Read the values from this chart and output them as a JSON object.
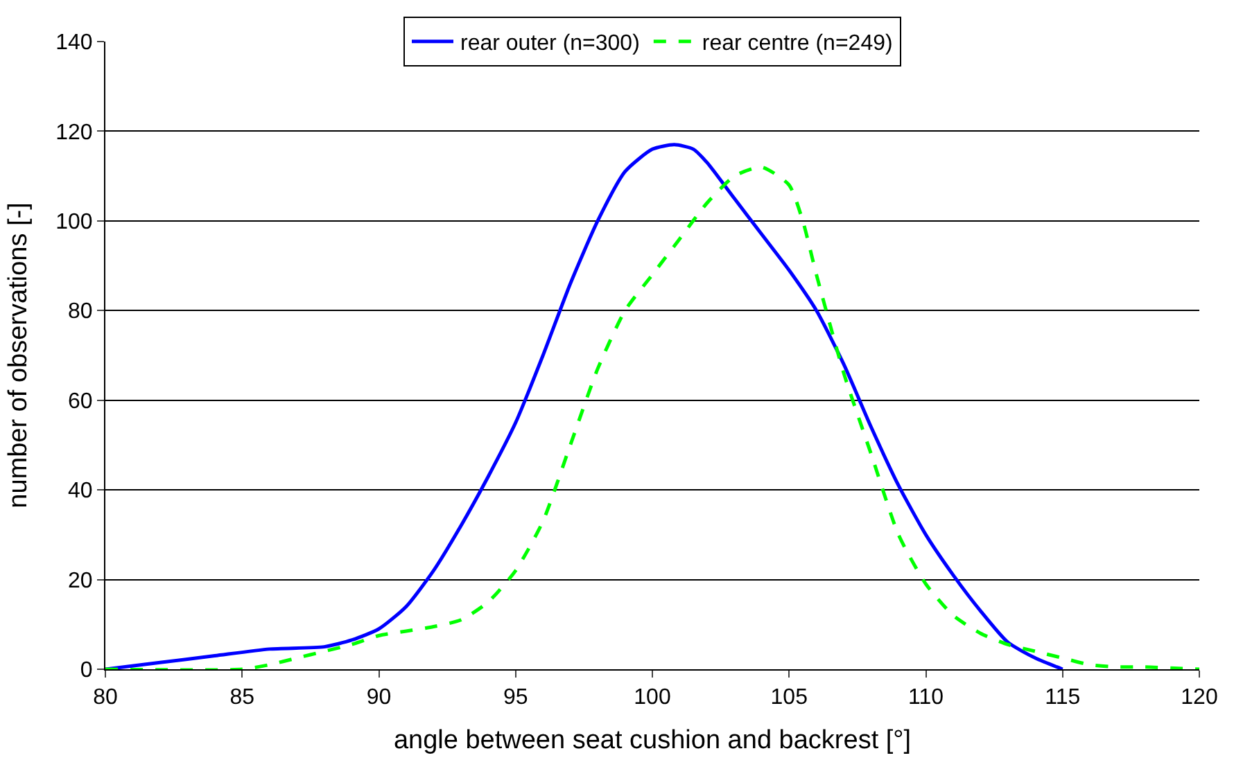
{
  "chart_data": {
    "type": "line",
    "xlabel": "angle between seat cushion and backrest [°]",
    "ylabel": "number of observations [-]",
    "xlim": [
      80,
      120
    ],
    "xticks": [
      80,
      85,
      90,
      95,
      100,
      105,
      110,
      115,
      120
    ],
    "ylim": [
      0,
      140
    ],
    "yticks": [
      0,
      20,
      40,
      60,
      80,
      100,
      120,
      140
    ],
    "grid": "y",
    "legend": "top",
    "marker": "none",
    "series": [
      {
        "name": "rear outer (n=300)",
        "color": "#0000ff",
        "line_style": "solid",
        "x": [
          80,
          82,
          84,
          86,
          88,
          89,
          90,
          91,
          92,
          93,
          94,
          95,
          96,
          97,
          98,
          99,
          100,
          100.8,
          101.5,
          102,
          103,
          104,
          105,
          106,
          107,
          108,
          109,
          110,
          111,
          112,
          113,
          114,
          115
        ],
        "values": [
          0,
          1.5,
          3,
          4.5,
          5,
          6.5,
          9,
          14,
          22,
          32,
          43,
          55,
          70,
          86,
          100,
          111,
          116,
          117,
          116,
          113,
          105,
          97,
          89,
          80,
          68,
          54,
          41,
          30,
          21,
          13,
          6,
          2.5,
          0
        ]
      },
      {
        "name": "rear centre (n=249)",
        "color": "#00ff00",
        "line_style": "dashed",
        "x": [
          80,
          85,
          86,
          87,
          88,
          89,
          90,
          91,
          92,
          93,
          94,
          95,
          96,
          97,
          98,
          99,
          100,
          101,
          102,
          103,
          104,
          105,
          105.5,
          106,
          107,
          108,
          109,
          110,
          111,
          112,
          113,
          114,
          115,
          116,
          117,
          118,
          120
        ],
        "values": [
          0,
          0,
          1,
          2.5,
          4,
          5.5,
          7.5,
          8.5,
          9.5,
          11,
          15,
          22,
          33,
          50,
          67,
          80,
          88,
          96,
          104,
          110,
          112,
          108,
          100,
          88,
          66,
          48,
          30,
          19,
          12,
          8,
          5.5,
          4,
          2.5,
          1,
          0.5,
          0.5,
          0
        ]
      }
    ]
  }
}
